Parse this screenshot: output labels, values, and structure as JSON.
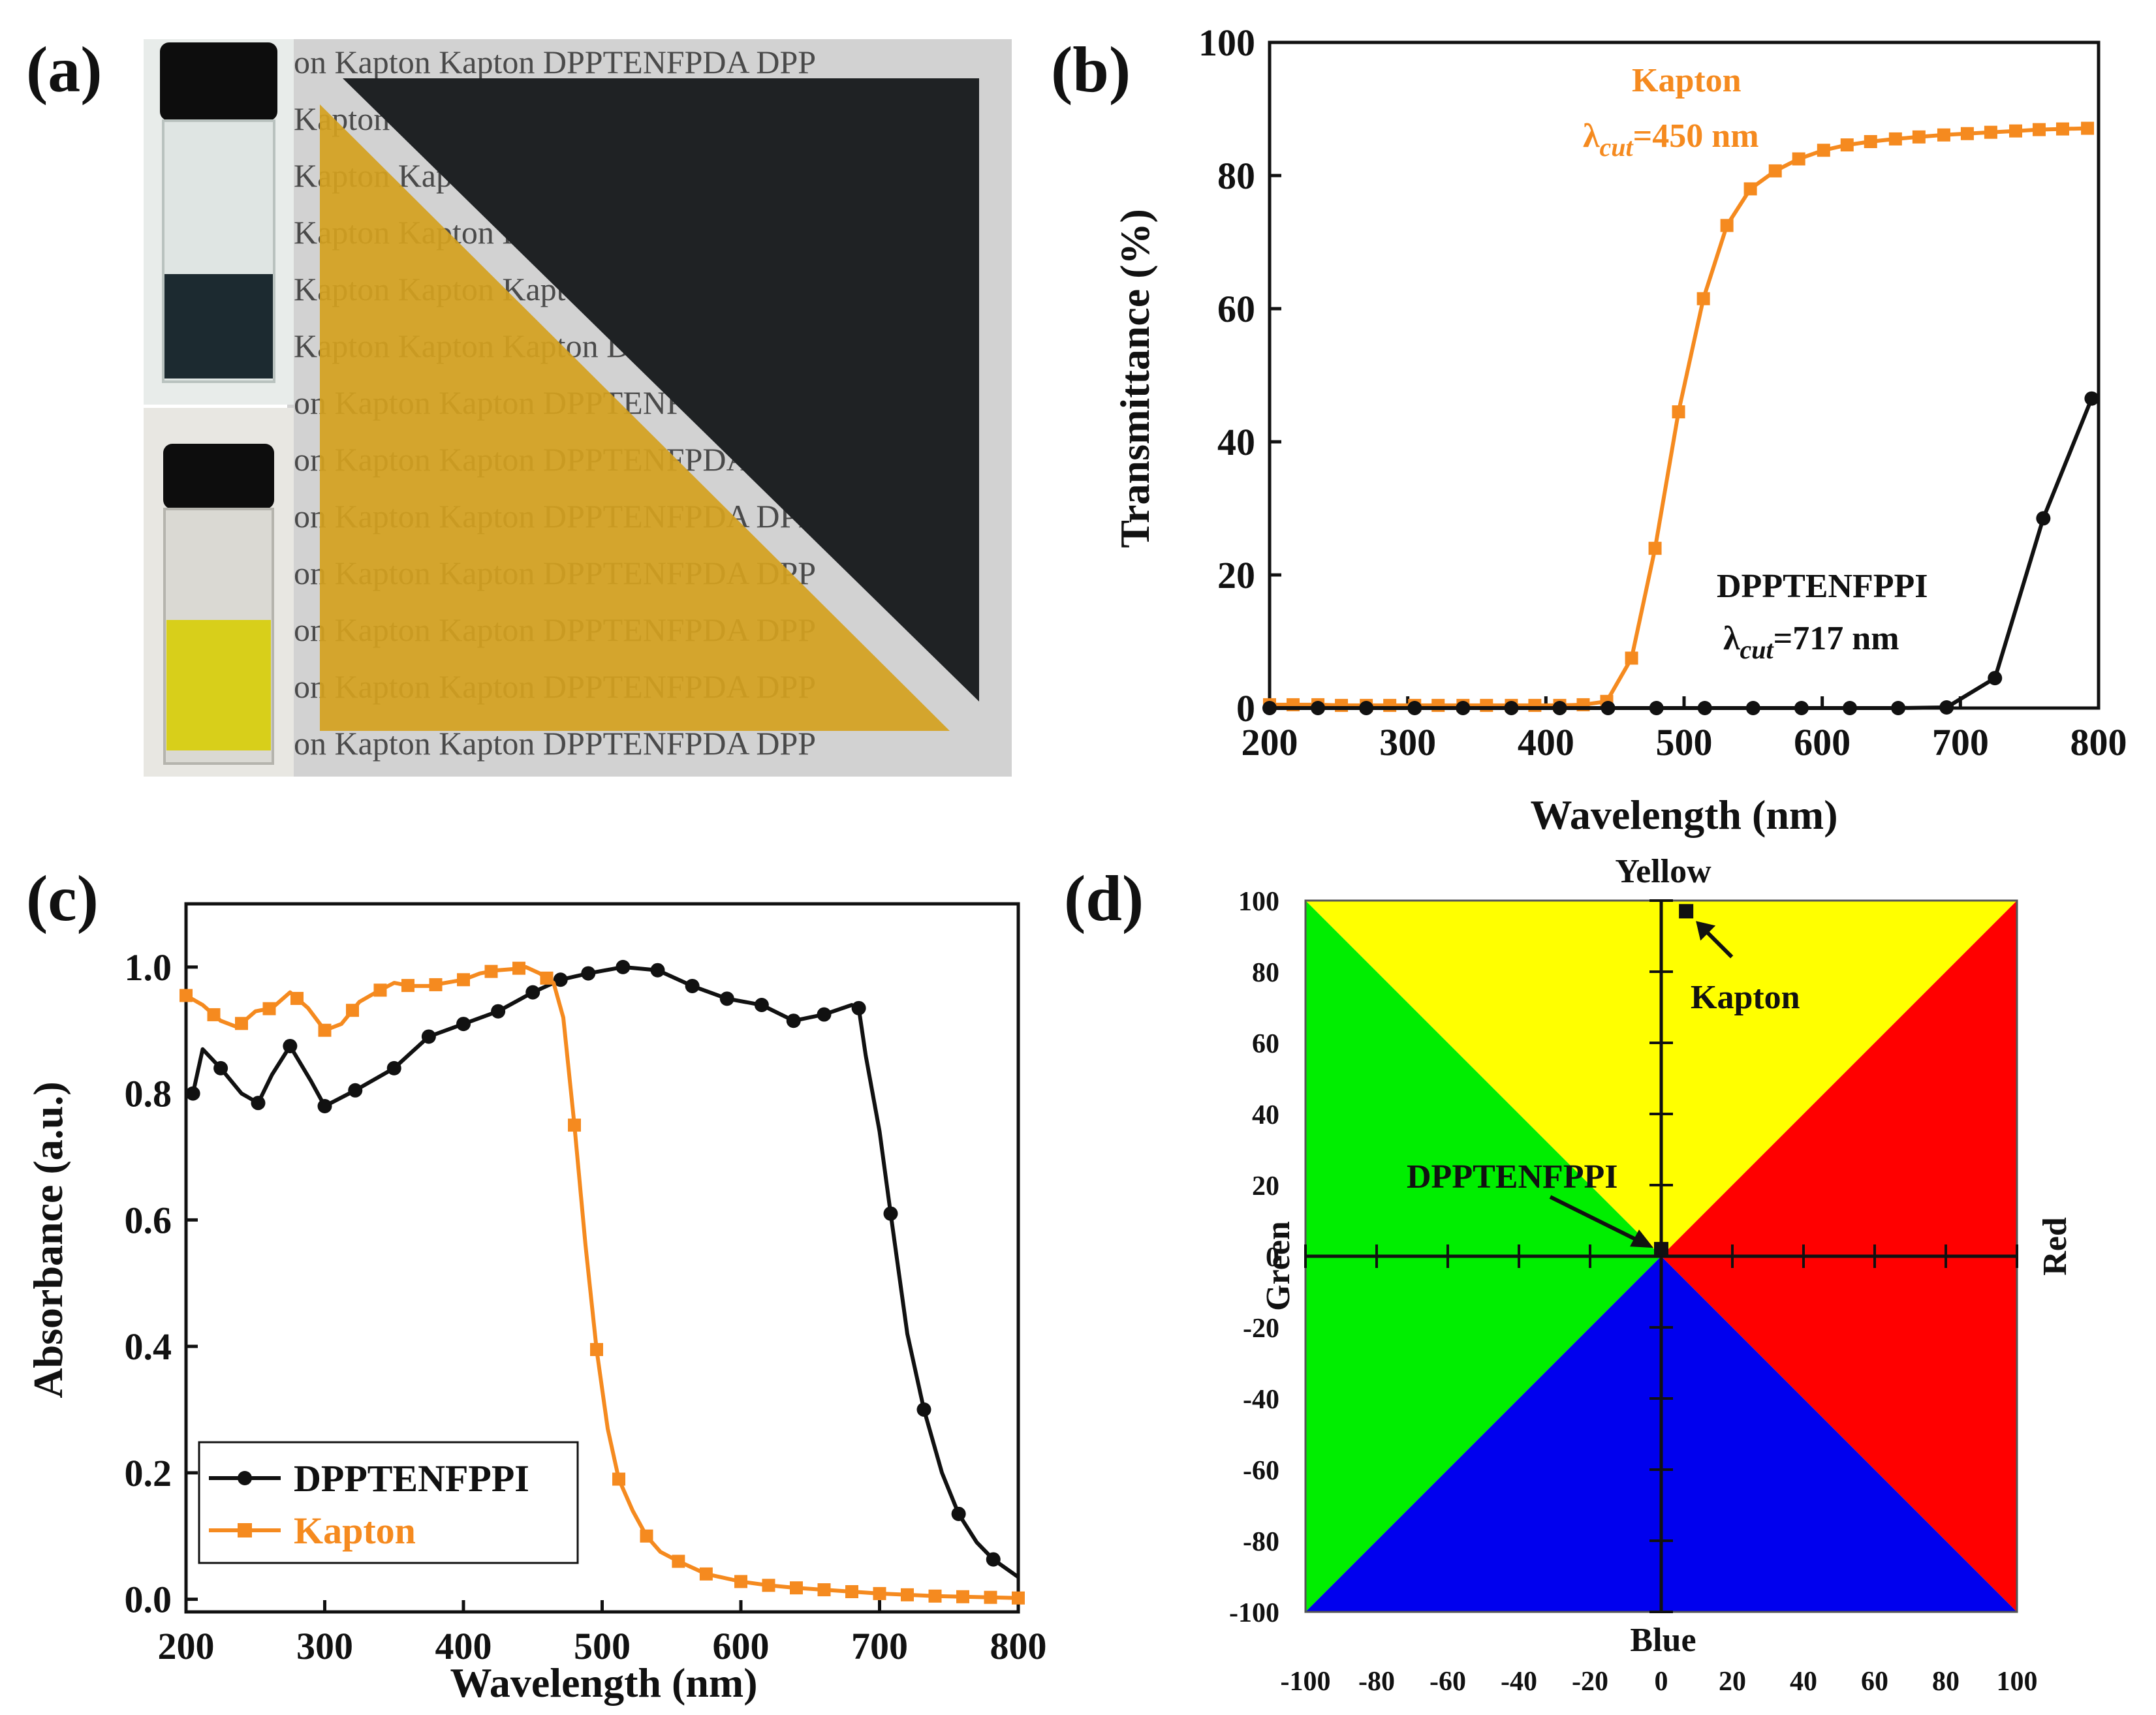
{
  "panels": {
    "a": {
      "label": "(a)",
      "sheet_rows": [
        "on   Kapton   Kapton   DPPTENFPDA   DPP",
        "Kapton   Kapton   Kapton   DPPTENFPDA   DPP",
        "Kapton   Kapton   Kapton   DPPTENFPDA   DPP",
        "Kapton   Kapton   Kapton   DPPTENFPDA   DPP",
        "Kapton   Kapton   Kapton   DPPTENFPDA   DPP",
        "Kapton   Kapton   Kapton   DPPTENFPDA   DPP",
        "on   Kapton   Kapton   DPPTENFPDA   DPP",
        "on   Kapton   Kapton   DPPTENFPDA   DPP",
        "on   Kapton   Kapton   DPPTENFPDA   DPP",
        "on   Kapton   Kapton   DPPTENFPDA   DPP",
        "on   Kapton   Kapton   DPPTENFPDA   DPP",
        "on   Kapton   Kapton   DPPTENFPDA   DPP",
        "on   Kapton   Kapton   DPPTENFPDA   DPP"
      ],
      "colors": {
        "kapton_film": "#d4a11e",
        "black_film": "#1f2224",
        "paper": "#d2d2d2",
        "vial_yellow": "#d8cf1a",
        "vial_dark": "#1c2a30"
      }
    },
    "b": {
      "label": "(b)"
    },
    "c": {
      "label": "(c)"
    },
    "d": {
      "label": "(d)"
    }
  },
  "chart_data": [
    {
      "panel": "b",
      "type": "line",
      "xlabel": "Wavelength (nm)",
      "ylabel": "Transmittance (%)",
      "xlim": [
        200,
        800
      ],
      "ylim": [
        0,
        100
      ],
      "xticks": [
        200,
        300,
        400,
        500,
        600,
        700,
        800
      ],
      "yticks": [
        0,
        20,
        40,
        60,
        80,
        100
      ],
      "series": [
        {
          "name": "Kapton",
          "color": "#f58a1f",
          "marker": "square",
          "x": [
            200,
            217,
            235,
            252,
            270,
            287,
            305,
            322,
            340,
            357,
            375,
            392,
            410,
            427,
            444,
            462,
            479,
            496,
            514,
            531,
            548,
            566,
            583,
            601,
            618,
            635,
            653,
            670,
            688,
            705,
            722,
            740,
            757,
            774,
            792
          ],
          "y": [
            0.5,
            0.5,
            0.5,
            0.4,
            0.4,
            0.4,
            0.4,
            0.4,
            0.4,
            0.4,
            0.4,
            0.4,
            0.4,
            0.5,
            1.0,
            7.5,
            24,
            44.5,
            61.5,
            72.5,
            78,
            80.7,
            82.5,
            83.8,
            84.6,
            85.1,
            85.5,
            85.8,
            86.1,
            86.3,
            86.5,
            86.7,
            86.9,
            87.0,
            87.1
          ],
          "annotation": {
            "name": "Kapton",
            "cutoff": "λcut=450 nm",
            "cutoff_prefix": "λ",
            "cutoff_sub": "cut",
            "cutoff_suffix": "=450 nm"
          }
        },
        {
          "name": "DPPTENFPPI",
          "color": "#111111",
          "marker": "circle",
          "x": [
            200,
            235,
            270,
            305,
            340,
            375,
            410,
            445,
            480,
            515,
            550,
            585,
            620,
            655,
            690,
            725,
            760,
            795
          ],
          "y": [
            0,
            0,
            0,
            0,
            0,
            0,
            0,
            0,
            0,
            0,
            0,
            0,
            0,
            0,
            0.1,
            4.5,
            28.5,
            46.5
          ],
          "annotation": {
            "name": "DPPTENFPPI",
            "cutoff": "λcut=717 nm",
            "cutoff_prefix": "λ",
            "cutoff_sub": "cut",
            "cutoff_suffix": "=717 nm"
          }
        }
      ]
    },
    {
      "panel": "c",
      "type": "line",
      "xlabel": "Wavelength (nm)",
      "ylabel": "Absorbance (a.u.)",
      "xlim": [
        200,
        800
      ],
      "ylim": [
        -0.02,
        1.1
      ],
      "xticks": [
        200,
        300,
        400,
        500,
        600,
        700,
        800
      ],
      "yticks": [
        0.0,
        0.2,
        0.4,
        0.6,
        0.8,
        1.0
      ],
      "legend": "bottom-left",
      "series": [
        {
          "name": "DPPTENFPPI",
          "color": "#111111",
          "marker": "circle",
          "x": [
            205,
            212,
            225,
            240,
            252,
            262,
            275,
            290,
            300,
            322,
            350,
            375,
            400,
            425,
            450,
            470,
            490,
            515,
            540,
            565,
            590,
            615,
            638,
            660,
            680,
            685,
            690,
            700,
            708,
            720,
            732,
            745,
            757,
            770,
            782,
            800
          ],
          "y": [
            0.8,
            0.87,
            0.84,
            0.8,
            0.785,
            0.83,
            0.875,
            0.82,
            0.78,
            0.805,
            0.84,
            0.89,
            0.91,
            0.93,
            0.96,
            0.98,
            0.99,
            1.0,
            0.995,
            0.97,
            0.95,
            0.94,
            0.915,
            0.925,
            0.94,
            0.935,
            0.86,
            0.74,
            0.61,
            0.42,
            0.3,
            0.2,
            0.135,
            0.09,
            0.063,
            0.035
          ],
          "markers_x": [
            205,
            225,
            252,
            275,
            300,
            322,
            350,
            375,
            400,
            425,
            450,
            470,
            490,
            515,
            540,
            565,
            590,
            615,
            638,
            660,
            685,
            708,
            732,
            757,
            782
          ]
        },
        {
          "name": "Kapton",
          "color": "#f58a1f",
          "marker": "square",
          "x": [
            200,
            212,
            225,
            237,
            250,
            262,
            275,
            288,
            300,
            312,
            325,
            337,
            350,
            362,
            375,
            387,
            400,
            412,
            425,
            437,
            445,
            455,
            465,
            472,
            480,
            488,
            496,
            504,
            512,
            522,
            532,
            542,
            555,
            575,
            600,
            620,
            640,
            660,
            680,
            700,
            720,
            740,
            760,
            780,
            800
          ],
          "y": [
            0.955,
            0.94,
            0.915,
            0.905,
            0.93,
            0.935,
            0.96,
            0.935,
            0.9,
            0.91,
            0.945,
            0.96,
            0.975,
            0.97,
            0.97,
            0.975,
            0.98,
            0.99,
            0.995,
            0.997,
            1.0,
            0.99,
            0.975,
            0.92,
            0.75,
            0.56,
            0.395,
            0.27,
            0.19,
            0.14,
            0.1,
            0.075,
            0.06,
            0.04,
            0.028,
            0.022,
            0.018,
            0.015,
            0.012,
            0.009,
            0.007,
            0.005,
            0.004,
            0.003,
            0.002
          ],
          "markers_x": [
            200,
            220,
            240,
            260,
            280,
            300,
            320,
            340,
            360,
            380,
            400,
            420,
            440,
            460,
            480,
            496,
            512,
            532,
            555,
            575,
            600,
            620,
            640,
            660,
            680,
            700,
            720,
            740,
            760,
            780,
            800
          ]
        }
      ]
    },
    {
      "panel": "d",
      "type": "scatter",
      "title": "",
      "xlim": [
        -100,
        100
      ],
      "ylim": [
        -100,
        100
      ],
      "xticks": [
        -100,
        -80,
        -60,
        -40,
        -20,
        0,
        20,
        40,
        60,
        80,
        100
      ],
      "yticks": [
        -100,
        -80,
        -60,
        -40,
        -20,
        0,
        20,
        40,
        60,
        80,
        100
      ],
      "axis_labels": {
        "top": "Yellow",
        "bottom": "Blue",
        "left": "Green",
        "right": "Red"
      },
      "region_colors": {
        "yellow": "#ffff00",
        "green": "#00ee00",
        "blue": "#0000ee",
        "red": "#ff0000"
      },
      "points": [
        {
          "name": "Kapton",
          "x": 7,
          "y": 97
        },
        {
          "name": "DPPTENFPPI",
          "x": 0,
          "y": 2
        }
      ]
    }
  ]
}
